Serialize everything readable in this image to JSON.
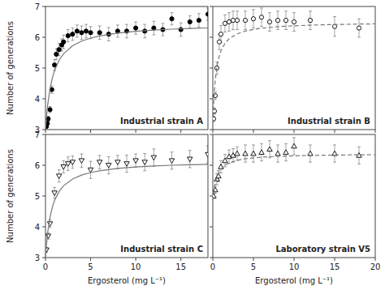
{
  "chart_data": [
    {
      "type": "scatter",
      "annotation": "Industrial strain A",
      "ylabel": "Number of generations",
      "xlim": [
        0,
        18
      ],
      "ylim": [
        3,
        7
      ],
      "xticks": [
        0,
        5,
        10,
        15
      ],
      "yticks": [
        3,
        4,
        5,
        6,
        7
      ],
      "tick_labels": "y",
      "series": [
        {
          "type": "scatter",
          "marker": "circle",
          "color": "black",
          "x": [
            0.1,
            0.2,
            0.3,
            0.5,
            0.7,
            1.0,
            1.2,
            1.5,
            1.8,
            2.0,
            2.5,
            3.0,
            3.5,
            4.0,
            4.5,
            5.0,
            6.0,
            7.0,
            8.0,
            9.0,
            10.0,
            11.0,
            12.0,
            13.0,
            14.0,
            15.0,
            16.0,
            17.0,
            18.0
          ],
          "values": [
            3.1,
            3.2,
            3.35,
            3.65,
            4.3,
            5.1,
            5.45,
            5.6,
            5.75,
            5.85,
            6.05,
            6.1,
            6.2,
            6.15,
            6.2,
            6.15,
            6.15,
            6.1,
            6.2,
            6.2,
            6.3,
            6.2,
            6.3,
            6.25,
            6.6,
            6.25,
            6.5,
            6.55,
            6.75
          ],
          "errors": [
            0.05,
            0.05,
            0.08,
            0.1,
            0.12,
            0.18,
            0.18,
            0.2,
            0.2,
            0.22,
            0.2,
            0.2,
            0.2,
            0.22,
            0.22,
            0.2,
            0.22,
            0.22,
            0.2,
            0.22,
            0.2,
            0.22,
            0.22,
            0.2,
            0.2,
            0.22,
            0.2,
            0.22,
            0.2
          ]
        },
        {
          "type": "line",
          "line_style": "solid",
          "color": "#777777",
          "x": [
            0,
            0.1,
            0.25,
            0.5,
            0.75,
            1,
            1.5,
            2,
            3,
            4,
            5,
            6,
            8,
            10,
            12,
            14,
            16,
            18
          ],
          "values": [
            3,
            3.3833,
            3.8214,
            4.3269,
            4.6694,
            4.9167,
            5.25,
            5.4643,
            5.7237,
            5.875,
            5.9741,
            6.0441,
            6.1364,
            6.1944,
            6.2344,
            6.2635,
            6.2857,
            6.3032
          ]
        }
      ]
    },
    {
      "type": "scatter",
      "annotation": "Industrial strain B",
      "xlim": [
        0,
        20
      ],
      "ylim": [
        3,
        7
      ],
      "xticks": [
        0,
        5,
        10,
        15,
        20
      ],
      "yticks": [
        3,
        4,
        5,
        6,
        7
      ],
      "tick_labels": false,
      "series": [
        {
          "type": "scatter",
          "marker": "circle-open",
          "color": "black",
          "x": [
            0.1,
            0.2,
            0.3,
            0.5,
            0.8,
            1.0,
            1.5,
            2.0,
            2.5,
            3.0,
            4.0,
            5.0,
            6.0,
            7.0,
            8.0,
            9.0,
            10.0,
            12.0,
            15.0,
            18.0
          ],
          "values": [
            3.35,
            3.6,
            4.1,
            5.0,
            5.85,
            6.1,
            6.45,
            6.5,
            6.55,
            6.55,
            6.55,
            6.6,
            6.65,
            6.5,
            6.55,
            6.55,
            6.5,
            6.55,
            6.35,
            6.3
          ],
          "errors": [
            0.08,
            0.1,
            0.12,
            0.2,
            0.25,
            0.28,
            0.28,
            0.3,
            0.3,
            0.3,
            0.3,
            0.3,
            0.3,
            0.3,
            0.3,
            0.3,
            0.3,
            0.3,
            0.32,
            0.3
          ]
        },
        {
          "type": "line",
          "line_style": "dashed",
          "color": "#777777",
          "x": [
            0,
            0.1,
            0.25,
            0.5,
            0.75,
            1,
            1.5,
            2,
            3,
            4,
            5,
            6,
            8,
            10,
            12,
            14,
            16,
            18,
            20
          ],
          "values": [
            3.2,
            3.86,
            4.4692,
            5.0333,
            5.3522,
            5.5571,
            5.8053,
            5.95,
            6.1118,
            6.2,
            6.2556,
            6.2938,
            6.3429,
            6.3731,
            6.3935,
            6.4083,
            6.4195,
            6.4283,
            6.4353
          ]
        }
      ]
    },
    {
      "type": "scatter",
      "annotation": "Industrial strain C",
      "ylabel": "Number of generations",
      "xlabel": "Ergosterol (mg L⁻¹)",
      "xlim": [
        0,
        18
      ],
      "ylim": [
        3,
        7
      ],
      "xticks": [
        0,
        5,
        10,
        15
      ],
      "yticks": [
        3,
        4,
        5,
        6,
        7
      ],
      "series": [
        {
          "type": "scatter",
          "marker": "triangle-down-open",
          "color": "black",
          "x": [
            0.1,
            0.3,
            0.5,
            1.0,
            1.5,
            2.0,
            2.5,
            3.0,
            4.0,
            5.0,
            6.0,
            7.0,
            8.0,
            9.0,
            10.0,
            11.0,
            12.0,
            14.0,
            16.0,
            18.0
          ],
          "values": [
            3.25,
            3.7,
            4.1,
            5.1,
            5.65,
            5.95,
            6.05,
            6.1,
            6.15,
            5.85,
            6.1,
            6.0,
            6.1,
            6.05,
            6.15,
            6.1,
            6.25,
            6.15,
            6.2,
            6.35
          ],
          "errors": [
            0.08,
            0.1,
            0.12,
            0.18,
            0.2,
            0.2,
            0.22,
            0.2,
            0.22,
            0.28,
            0.22,
            0.28,
            0.22,
            0.28,
            0.22,
            0.28,
            0.28,
            0.28,
            0.28,
            0.28
          ]
        },
        {
          "type": "line",
          "line_style": "solid",
          "color": "#777777",
          "x": [
            0,
            0.1,
            0.25,
            0.5,
            0.75,
            1,
            1.5,
            2,
            3,
            4,
            5,
            6,
            8,
            10,
            12,
            14,
            16,
            18
          ],
          "values": [
            3,
            3.3938,
            3.8289,
            4.3125,
            4.6293,
            4.8529,
            5.1477,
            5.3333,
            5.5541,
            5.6809,
            5.7632,
            5.8209,
            5.8966,
            5.9439,
            5.9764,
            6,
            6.018,
            6.0321
          ]
        }
      ]
    },
    {
      "type": "scatter",
      "annotation": "Laboratory strain V5",
      "xlabel": "Ergosterol (mg L⁻¹)",
      "xlim": [
        0,
        20
      ],
      "ylim": [
        3,
        7
      ],
      "xticks": [
        0,
        5,
        10,
        15,
        20
      ],
      "yticks": [
        3,
        4,
        5,
        6,
        7
      ],
      "tick_labels": "x",
      "series": [
        {
          "type": "scatter",
          "marker": "triangle-up-open",
          "color": "black",
          "x": [
            0.1,
            0.3,
            0.5,
            0.7,
            1.0,
            1.5,
            2.0,
            2.5,
            3.0,
            4.0,
            5.0,
            6.0,
            7.0,
            8.0,
            9.0,
            10.0,
            12.0,
            15.0,
            18.0
          ],
          "values": [
            5.0,
            5.2,
            5.55,
            5.65,
            5.95,
            6.15,
            6.28,
            6.32,
            6.38,
            6.38,
            6.38,
            6.42,
            6.52,
            6.38,
            6.42,
            6.62,
            6.38,
            6.38,
            6.32
          ],
          "errors": [
            0.08,
            0.12,
            0.18,
            0.18,
            0.2,
            0.2,
            0.22,
            0.22,
            0.22,
            0.28,
            0.28,
            0.28,
            0.28,
            0.28,
            0.28,
            0.28,
            0.28,
            0.28,
            0.28
          ]
        },
        {
          "type": "line",
          "line_style": "dashed",
          "color": "#777777",
          "x": [
            0,
            0.1,
            0.25,
            0.5,
            0.75,
            1,
            1.5,
            2,
            3,
            4,
            5,
            6,
            8,
            10,
            12,
            14,
            16,
            18,
            20
          ],
          "values": [
            4.85,
            5.105,
            5.36,
            5.615,
            5.768,
            5.87,
            5.9975,
            6.074,
            6.1614,
            6.21,
            6.2409,
            6.2623,
            6.29,
            6.3071,
            6.3188,
            6.3272,
            6.3336,
            6.3386,
            6.3427
          ]
        }
      ]
    }
  ]
}
